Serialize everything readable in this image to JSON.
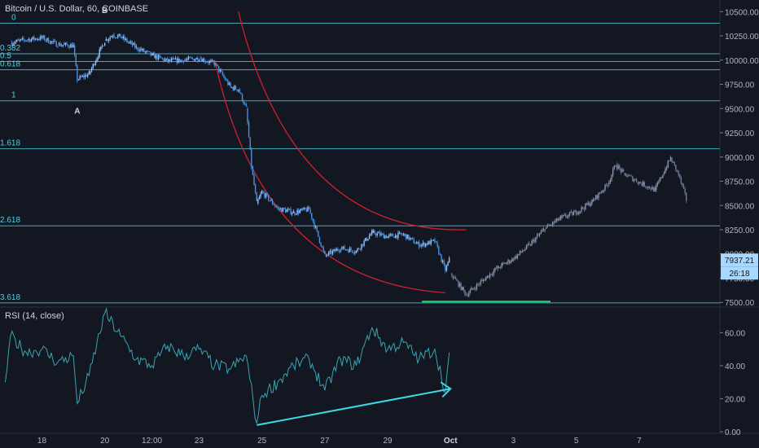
{
  "header": {
    "title": "Bitcoin / U.S. Dollar, 60, COINBASE"
  },
  "rsi_panel": {
    "label": "RSI (14, close)"
  },
  "price_badges": {
    "last_price": "7937.21",
    "countdown": "26:18"
  },
  "colors": {
    "background": "#131722",
    "grid": "#2a2e39",
    "candle": "#4a90e2",
    "candle_light": "#8fc3ff",
    "projection": "#6e7a99",
    "fib_line": "#4fb8c8",
    "fib_text": "#4fd1de",
    "arc": "#d0202d",
    "support": "#21d36b",
    "rsi_line": "#3aa4b1",
    "rsi_trend": "#3fd7e6",
    "badge": "#a8d8ff"
  },
  "chart_data": [
    {
      "type": "line",
      "name": "price",
      "x_ticks": [
        "18",
        "20",
        "12:00",
        "23",
        "25",
        "27",
        "29",
        "Oct",
        "3",
        "5",
        "7"
      ],
      "y_ticks": [
        7500,
        7750,
        8000,
        8250,
        8500,
        8750,
        9000,
        9250,
        9500,
        9750,
        10000,
        10250,
        10500
      ],
      "y_tick_labels": [
        "7500.00",
        "7750.00",
        "8000.00",
        "8250.00",
        "8500.00",
        "8750.00",
        "9000.00",
        "9250.00",
        "9500.00",
        "9750.00",
        "10000.00",
        "10250.00",
        "10500.00"
      ],
      "ylim": [
        7460,
        10620
      ],
      "fib_levels": [
        {
          "label": "0",
          "price": 10380
        },
        {
          "label": "0.382",
          "price": 10065
        },
        {
          "label": "0.5",
          "price": 9985
        },
        {
          "label": "0.618",
          "price": 9900
        },
        {
          "label": "1",
          "price": 9580
        },
        {
          "label": "1.618",
          "price": 9085
        },
        {
          "label": "2.618",
          "price": 8290
        },
        {
          "label": "3.618",
          "price": 7495
        }
      ],
      "annotations": [
        {
          "text": "A",
          "x": "Sep 19",
          "price": 9580
        },
        {
          "text": "B",
          "x": "Sep 20",
          "price": 10400
        }
      ],
      "series": [
        {
          "values": [
            [
              "Sep 17 00:00",
              10180
            ],
            [
              "Sep 17 12:00",
              10210
            ],
            [
              "Sep 18 00:00",
              10230
            ],
            [
              "Sep 18 12:00",
              10160
            ],
            [
              "Sep 19 00:00",
              10150
            ],
            [
              "Sep 19 03:00",
              9800
            ],
            [
              "Sep 19 12:00",
              9860
            ],
            [
              "Sep 20 00:00",
              10200
            ],
            [
              "Sep 20 06:00",
              10260
            ],
            [
              "Sep 20 12:00",
              10240
            ],
            [
              "Sep 21 00:00",
              10130
            ],
            [
              "Sep 21 12:00",
              10050
            ],
            [
              "Sep 22 00:00",
              9990
            ],
            [
              "Sep 22 12:00",
              10000
            ],
            [
              "Sep 23 00:00",
              10020
            ],
            [
              "Sep 23 12:00",
              9960
            ],
            [
              "Sep 24 00:00",
              9720
            ],
            [
              "Sep 24 06:00",
              9700
            ],
            [
              "Sep 24 12:00",
              9500
            ],
            [
              "Sep 24 16:00",
              8900
            ],
            [
              "Sep 24 20:00",
              8520
            ],
            [
              "Sep 25 00:00",
              8640
            ],
            [
              "Sep 25 12:00",
              8470
            ],
            [
              "Sep 26 00:00",
              8430
            ],
            [
              "Sep 26 12:00",
              8460
            ],
            [
              "Sep 27 00:00",
              7980
            ],
            [
              "Sep 27 12:00",
              8060
            ],
            [
              "Sep 28 00:00",
              8030
            ],
            [
              "Sep 28 12:00",
              8220
            ],
            [
              "Sep 29 00:00",
              8180
            ],
            [
              "Sep 29 12:00",
              8200
            ],
            [
              "Sep 30 00:00",
              8090
            ],
            [
              "Sep 30 12:00",
              8130
            ],
            [
              "Sep 30 20:00",
              7830
            ],
            [
              "Sep 30 23:00",
              7937
            ]
          ]
        },
        {
          "name": "projection",
          "values": [
            [
              "Oct 1 00:00",
              7800
            ],
            [
              "Oct 1 12:00",
              7580
            ],
            [
              "Oct 2 00:00",
              7720
            ],
            [
              "Oct 2 12:00",
              7860
            ],
            [
              "Oct 3 00:00",
              7950
            ],
            [
              "Oct 3 12:00",
              8090
            ],
            [
              "Oct 4 00:00",
              8260
            ],
            [
              "Oct 4 12:00",
              8370
            ],
            [
              "Oct 5 00:00",
              8430
            ],
            [
              "Oct 5 12:00",
              8540
            ],
            [
              "Oct 6 00:00",
              8720
            ],
            [
              "Oct 6 06:00",
              8920
            ],
            [
              "Oct 6 12:00",
              8830
            ],
            [
              "Oct 7 00:00",
              8740
            ],
            [
              "Oct 7 12:00",
              8660
            ],
            [
              "Oct 8 00:00",
              8990
            ],
            [
              "Oct 8 06:00",
              8820
            ],
            [
              "Oct 8 12:00",
              8560
            ]
          ]
        }
      ]
    },
    {
      "type": "line",
      "name": "rsi",
      "y_ticks": [
        0,
        20,
        40,
        60
      ],
      "y_tick_labels": [
        "0.00",
        "20.00",
        "40.00",
        "60.00"
      ],
      "ylim": [
        -1,
        75
      ],
      "series": [
        {
          "values": [
            [
              "Sep 16 20:00",
              30
            ],
            [
              "Sep 17 00:00",
              58
            ],
            [
              "Sep 17 12:00",
              48
            ],
            [
              "Sep 18 00:00",
              50
            ],
            [
              "Sep 18 12:00",
              42
            ],
            [
              "Sep 19 00:00",
              46
            ],
            [
              "Sep 19 03:00",
              17
            ],
            [
              "Sep 19 12:00",
              34
            ],
            [
              "Sep 20 00:00",
              72
            ],
            [
              "Sep 20 12:00",
              58
            ],
            [
              "Sep 21 00:00",
              44
            ],
            [
              "Sep 21 12:00",
              40
            ],
            [
              "Sep 22 00:00",
              52
            ],
            [
              "Sep 22 12:00",
              46
            ],
            [
              "Sep 23 00:00",
              50
            ],
            [
              "Sep 23 12:00",
              40
            ],
            [
              "Sep 24 00:00",
              38
            ],
            [
              "Sep 24 12:00",
              46
            ],
            [
              "Sep 24 20:00",
              5
            ],
            [
              "Sep 25 00:00",
              22
            ],
            [
              "Sep 25 12:00",
              30
            ],
            [
              "Sep 26 00:00",
              40
            ],
            [
              "Sep 26 12:00",
              44
            ],
            [
              "Sep 27 00:00",
              25
            ],
            [
              "Sep 27 12:00",
              44
            ],
            [
              "Sep 28 00:00",
              40
            ],
            [
              "Sep 28 12:00",
              63
            ],
            [
              "Sep 29 00:00",
              50
            ],
            [
              "Sep 29 12:00",
              54
            ],
            [
              "Sep 30 00:00",
              44
            ],
            [
              "Sep 30 12:00",
              50
            ],
            [
              "Sep 30 20:00",
              24
            ],
            [
              "Sep 30 23:00",
              48
            ]
          ]
        }
      ],
      "trend_arrow": {
        "from": [
          "Sep 24 20:00",
          4
        ],
        "to": [
          "Oct 1 00:00",
          26
        ]
      }
    }
  ]
}
